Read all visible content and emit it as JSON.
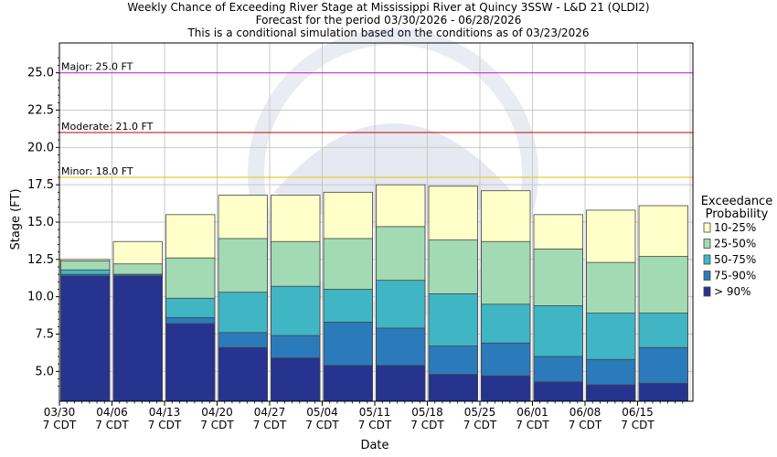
{
  "chart_data": {
    "type": "bar",
    "title_lines": [
      "Weekly Chance of Exceeding River Stage at Mississippi River at Quincy 3SSW - L&D 21 (QLDI2)",
      "Forecast for the period 03/30/2026 - 06/28/2026",
      "This is a conditional simulation based on the conditions as of 03/23/2026"
    ],
    "xlabel": "Date",
    "ylabel": "Stage (FT)",
    "ylim": [
      3.0,
      27.0
    ],
    "yticks": [
      "5.0",
      "7.5",
      "10.0",
      "12.5",
      "15.0",
      "17.5",
      "20.0",
      "22.5",
      "25.0"
    ],
    "categories": [
      "03/30",
      "04/06",
      "04/13",
      "04/20",
      "04/27",
      "05/04",
      "05/11",
      "05/18",
      "05/25",
      "06/01",
      "06/08",
      "06/15"
    ],
    "category_sublabel": "7 CDT",
    "grid": true,
    "thresholds": [
      {
        "label": "Major: 25.0 FT",
        "value": 25.0,
        "color": "#cc33cc"
      },
      {
        "label": "Moderate: 21.0 FT",
        "value": 21.0,
        "color": "#cc3333"
      },
      {
        "label": "Minor: 18.0 FT",
        "value": 18.0,
        "color": "#e6cc33"
      }
    ],
    "legend": {
      "title": [
        "Exceedance",
        "Probability"
      ],
      "placement": "right"
    },
    "series": [
      {
        "name": "> 90%",
        "color": "#26338f",
        "values": [
          11.4,
          11.4,
          8.2,
          6.6,
          5.9,
          5.4,
          5.4,
          4.8,
          4.7,
          4.3,
          4.1,
          4.2
        ]
      },
      {
        "name": "75-90%",
        "color": "#2b7bba",
        "values": [
          11.5,
          11.5,
          8.6,
          7.6,
          7.4,
          8.3,
          7.9,
          6.7,
          6.9,
          6.0,
          5.8,
          6.6
        ]
      },
      {
        "name": "50-75%",
        "color": "#40b5c4",
        "values": [
          11.8,
          11.5,
          9.9,
          10.3,
          10.7,
          10.5,
          11.1,
          10.2,
          9.5,
          9.4,
          8.9,
          8.9
        ]
      },
      {
        "name": "25-50%",
        "color": "#a2dab4",
        "values": [
          12.4,
          12.2,
          12.6,
          13.9,
          13.7,
          13.9,
          14.7,
          13.8,
          13.7,
          13.2,
          12.3,
          12.7
        ]
      },
      {
        "name": "10-25%",
        "color": "#ffffc9",
        "values": [
          12.5,
          13.7,
          15.5,
          16.8,
          16.8,
          17.0,
          17.5,
          17.4,
          17.1,
          15.5,
          15.8,
          16.1
        ]
      }
    ]
  }
}
